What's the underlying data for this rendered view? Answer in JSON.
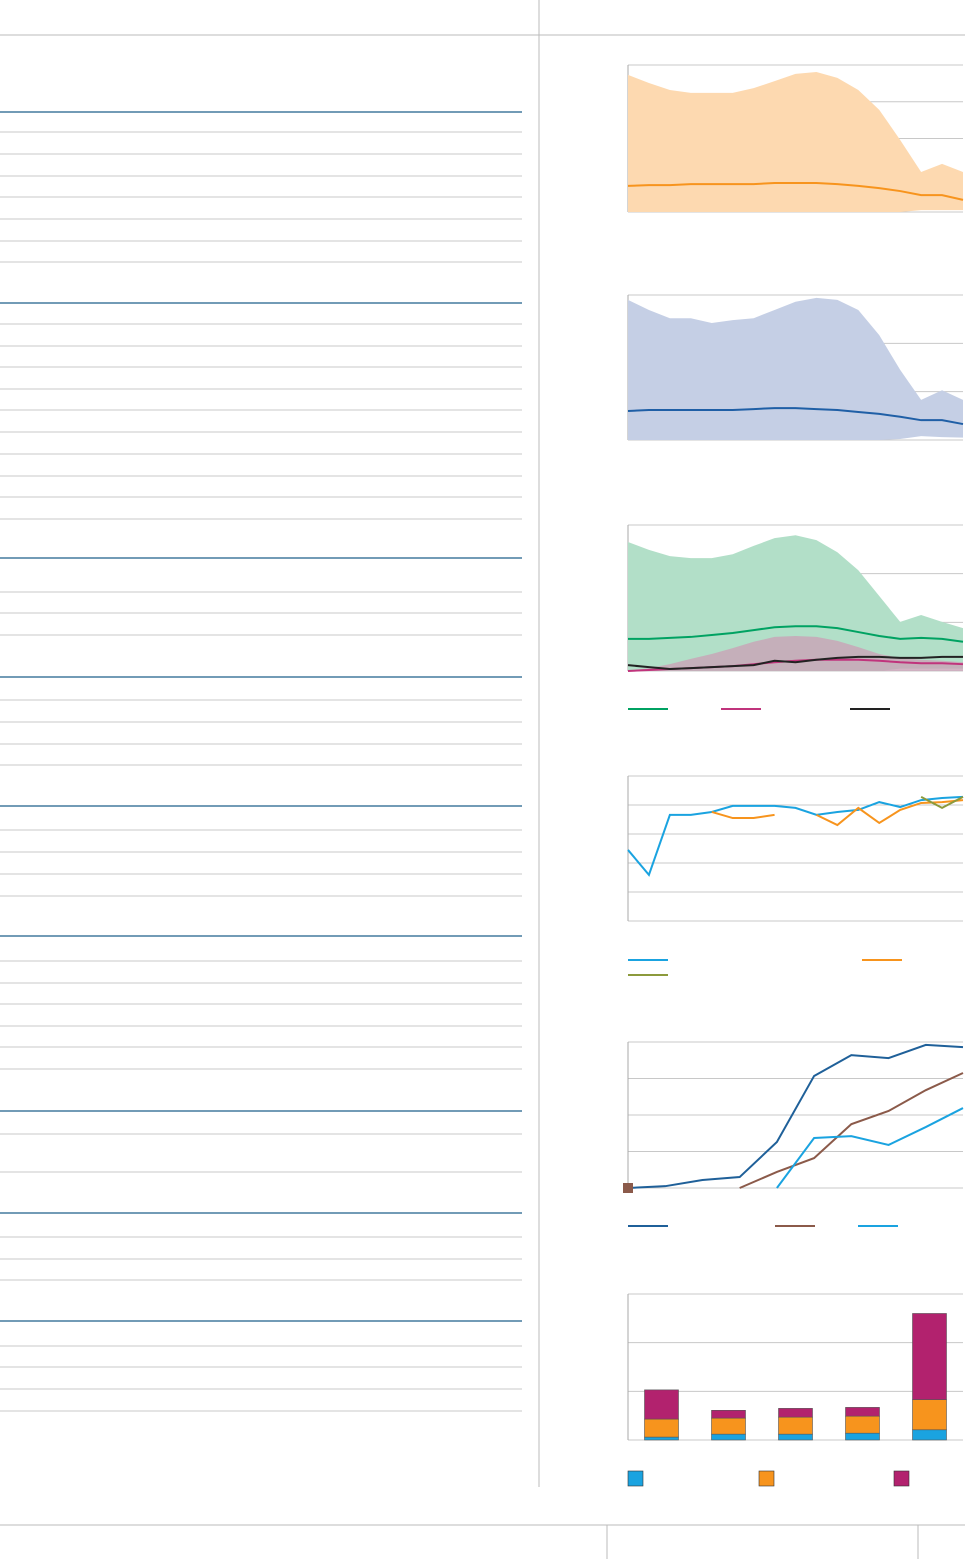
{
  "charts": [
    {
      "type": "band-line",
      "ylim": [
        0,
        4
      ],
      "yticks": [
        0,
        1,
        2,
        3,
        4
      ],
      "grid": true,
      "categories": [
        null,
        null,
        null,
        null,
        null,
        null,
        null,
        null,
        null,
        null,
        null,
        null,
        null,
        null,
        null,
        null,
        null
      ],
      "bands": [
        {
          "color": "#fdd9b0",
          "upper": [
            3.73,
            3.51,
            3.32,
            3.24,
            3.24,
            3.24,
            3.37,
            3.56,
            3.76,
            3.81,
            3.65,
            3.32,
            2.78,
            1.96,
            1.09,
            1.31,
            1.09
          ],
          "lower": [
            0,
            0,
            0,
            0,
            0,
            0,
            0,
            0,
            0,
            0,
            0,
            0,
            0,
            0,
            0.05,
            0.05,
            0.05
          ]
        }
      ],
      "series": [
        {
          "color": "#f7941d",
          "values": [
            0.71,
            0.73,
            0.73,
            0.76,
            0.76,
            0.76,
            0.76,
            0.79,
            0.79,
            0.79,
            0.76,
            0.71,
            0.65,
            0.57,
            0.46,
            0.46,
            0.33
          ]
        }
      ]
    },
    {
      "type": "band-line",
      "ylim": [
        0,
        3
      ],
      "yticks": [
        0,
        1,
        2,
        3
      ],
      "grid": true,
      "categories": [
        null,
        null,
        null,
        null,
        null,
        null,
        null,
        null,
        null,
        null,
        null,
        null,
        null,
        null,
        null,
        null,
        null
      ],
      "bands": [
        {
          "color": "#c5cfe5",
          "upper": [
            2.9,
            2.69,
            2.52,
            2.52,
            2.42,
            2.48,
            2.52,
            2.69,
            2.86,
            2.94,
            2.9,
            2.69,
            2.17,
            1.45,
            0.83,
            1.03,
            0.83
          ],
          "lower": [
            0,
            0,
            0,
            0,
            0,
            0,
            0,
            0,
            0,
            0,
            0,
            0,
            0,
            0.02,
            0.08,
            0.06,
            0.05
          ]
        }
      ],
      "series": [
        {
          "color": "#1f5fa6",
          "values": [
            0.6,
            0.62,
            0.62,
            0.62,
            0.62,
            0.62,
            0.64,
            0.66,
            0.66,
            0.64,
            0.62,
            0.58,
            0.54,
            0.48,
            0.41,
            0.41,
            0.33
          ]
        }
      ]
    },
    {
      "type": "band-line",
      "ylim": [
        0,
        3
      ],
      "yticks": [
        0,
        1,
        2,
        3
      ],
      "grid": true,
      "categories": [
        null,
        null,
        null,
        null,
        null,
        null,
        null,
        null,
        null,
        null,
        null,
        null,
        null,
        null,
        null,
        null,
        null
      ],
      "bands": [
        {
          "color": "#b2dfc8",
          "upper": [
            2.65,
            2.49,
            2.36,
            2.32,
            2.32,
            2.4,
            2.57,
            2.73,
            2.79,
            2.69,
            2.44,
            2.07,
            1.54,
            1.01,
            1.15,
            1.01,
            0.88
          ],
          "lower": [
            0,
            0,
            0,
            0,
            0,
            0,
            0,
            0,
            0,
            0,
            0,
            0,
            0,
            0.05,
            0.05,
            0.05,
            0.05
          ]
        },
        {
          "color": "#c9a3b6",
          "upper": [
            0,
            0.06,
            0.14,
            0.25,
            0.35,
            0.47,
            0.6,
            0.7,
            0.72,
            0.7,
            0.62,
            0.49,
            0.35,
            0.27,
            0.23,
            0.21,
            0.18
          ],
          "lower": [
            0,
            0,
            0,
            0,
            0,
            0,
            0,
            0,
            0,
            0,
            0,
            0,
            0,
            0,
            0,
            0,
            0
          ]
        }
      ],
      "series": [
        {
          "color": "#00a262",
          "values": [
            0.66,
            0.66,
            0.68,
            0.7,
            0.74,
            0.78,
            0.84,
            0.9,
            0.92,
            0.92,
            0.88,
            0.8,
            0.72,
            0.66,
            0.68,
            0.66,
            0.6
          ]
        },
        {
          "color": "#c0347c",
          "values": [
            0,
            0.02,
            0.04,
            0.06,
            0.08,
            0.1,
            0.14,
            0.18,
            0.21,
            0.23,
            0.23,
            0.23,
            0.21,
            0.18,
            0.16,
            0.16,
            0.14
          ]
        },
        {
          "color": "#222222",
          "values": [
            0.12,
            0.08,
            0.04,
            0.06,
            0.08,
            0.1,
            0.12,
            0.21,
            0.18,
            0.23,
            0.27,
            0.29,
            0.29,
            0.27,
            0.27,
            0.29,
            0.29
          ]
        }
      ],
      "legend": true
    },
    {
      "type": "line",
      "ylim": [
        0,
        5
      ],
      "yticks": [
        0,
        1,
        2,
        3,
        4,
        5
      ],
      "grid": true,
      "categories": [
        null,
        null,
        null,
        null,
        null,
        null,
        null,
        null,
        null,
        null,
        null,
        null,
        null,
        null,
        null,
        null,
        null
      ],
      "series": [
        {
          "color": "#1aa3e0",
          "values": [
            2.45,
            1.59,
            3.66,
            3.66,
            3.76,
            3.97,
            3.97,
            3.97,
            3.9,
            3.66,
            3.76,
            3.83,
            4.1,
            3.93,
            4.17,
            4.24,
            4.28
          ]
        },
        {
          "color": "#f7941d",
          "values": [
            null,
            null,
            null,
            null,
            3.76,
            3.55,
            3.55,
            3.66,
            null,
            3.66,
            3.31,
            3.9,
            3.38,
            3.83,
            4.07,
            4.1,
            4.17
          ]
        },
        {
          "color": "#8c9a3c",
          "values": [
            null,
            null,
            null,
            null,
            null,
            null,
            null,
            null,
            null,
            null,
            null,
            null,
            null,
            null,
            4.28,
            3.9,
            4.28
          ]
        }
      ],
      "legend": true
    },
    {
      "type": "line",
      "ylim": [
        0,
        4
      ],
      "yticks": [
        0,
        1,
        2,
        3,
        4
      ],
      "grid": true,
      "categories": [
        null,
        null,
        null,
        null,
        null,
        null,
        null,
        null,
        null,
        null
      ],
      "series": [
        {
          "color": "#1f6099",
          "values": [
            0,
            0.05,
            0.22,
            0.3,
            1.26,
            3.07,
            3.64,
            3.56,
            3.92,
            3.86
          ]
        },
        {
          "color": "#8b5a4a",
          "values": [
            0,
            null,
            null,
            0,
            0.44,
            0.82,
            1.75,
            2.11,
            2.68,
            3.15
          ]
        },
        {
          "color": "#1aa3e0",
          "values": [
            null,
            null,
            null,
            null,
            0,
            1.37,
            1.42,
            1.18,
            1.67,
            2.19
          ]
        }
      ],
      "legend": true
    },
    {
      "type": "stacked-bar",
      "ylim": [
        0,
        3
      ],
      "yticks": [
        0,
        1,
        2,
        3
      ],
      "grid": true,
      "categories": [
        null,
        null,
        null,
        null,
        null
      ],
      "series": [
        {
          "color": "#1aa3e0",
          "values": [
            0.06,
            0.12,
            0.12,
            0.14,
            0.21
          ]
        },
        {
          "color": "#f7941d",
          "values": [
            0.37,
            0.33,
            0.35,
            0.35,
            0.62
          ]
        },
        {
          "color": "#b2226e",
          "values": [
            0.6,
            0.16,
            0.18,
            0.18,
            1.77
          ]
        }
      ],
      "legend": true
    }
  ]
}
